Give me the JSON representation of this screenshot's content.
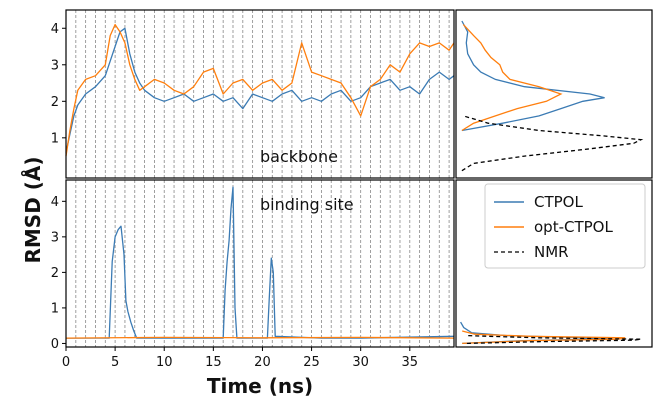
{
  "chart_data": {
    "type": "line",
    "ylabel": "RMSD (Å)",
    "xlabel": "Time (ns)",
    "xlim": [
      0,
      39.5
    ],
    "xticks": [
      0,
      5,
      10,
      15,
      20,
      25,
      30,
      35
    ],
    "colors": {
      "ctpol": "#3b7bb4",
      "opt": "#ff7f0e",
      "nmr": "#000000",
      "vline": "#888888"
    },
    "legend": [
      "CTPOL",
      "opt-CTPOL",
      "NMR"
    ],
    "panels": [
      {
        "name": "backbone",
        "label": "backbone",
        "ylim": [
          -0.1,
          4.5
        ],
        "yticks": [
          1,
          2,
          3,
          4
        ],
        "series": [
          {
            "name": "CTPOL",
            "x": [
              0,
              0.4,
              0.8,
              1.2,
              2,
              3,
              4,
              4.5,
              5,
              5.5,
              6,
              6.5,
              7,
              7.5,
              8,
              9,
              10,
              11,
              12,
              13,
              14,
              15,
              16,
              17,
              18,
              19,
              20,
              21,
              22,
              23,
              24,
              25,
              26,
              27,
              28,
              29,
              30,
              31,
              32,
              33,
              34,
              35,
              36,
              37,
              38,
              39,
              39.5
            ],
            "y": [
              0.6,
              1.1,
              1.6,
              1.9,
              2.2,
              2.4,
              2.7,
              3.1,
              3.5,
              3.9,
              4.0,
              3.3,
              2.8,
              2.5,
              2.3,
              2.1,
              2.0,
              2.1,
              2.2,
              2.0,
              2.1,
              2.2,
              2.0,
              2.1,
              1.8,
              2.2,
              2.1,
              2.0,
              2.2,
              2.3,
              2.0,
              2.1,
              2.0,
              2.2,
              2.3,
              2.0,
              2.1,
              2.4,
              2.5,
              2.6,
              2.3,
              2.4,
              2.2,
              2.6,
              2.8,
              2.6,
              2.7
            ]
          },
          {
            "name": "opt-CTPOL",
            "x": [
              0,
              0.4,
              0.8,
              1.2,
              2,
              3,
              4,
              4.5,
              5,
              5.5,
              6,
              6.5,
              7,
              7.5,
              8,
              9,
              10,
              11,
              12,
              13,
              14,
              15,
              16,
              17,
              18,
              19,
              20,
              21,
              22,
              23,
              24,
              25,
              26,
              27,
              28,
              29,
              30,
              31,
              32,
              33,
              34,
              35,
              36,
              37,
              38,
              39,
              39.5
            ],
            "y": [
              0.5,
              1.2,
              1.8,
              2.3,
              2.6,
              2.7,
              3.0,
              3.8,
              4.1,
              3.9,
              3.6,
              3.0,
              2.6,
              2.3,
              2.4,
              2.6,
              2.5,
              2.3,
              2.2,
              2.4,
              2.8,
              2.9,
              2.2,
              2.5,
              2.6,
              2.3,
              2.5,
              2.6,
              2.3,
              2.5,
              3.6,
              2.8,
              2.7,
              2.6,
              2.5,
              2.1,
              1.6,
              2.4,
              2.6,
              3.0,
              2.8,
              3.3,
              3.6,
              3.5,
              3.6,
              3.4,
              3.6
            ]
          }
        ]
      },
      {
        "name": "binding site",
        "label": "binding site",
        "ylim": [
          -0.1,
          4.6
        ],
        "yticks": [
          0,
          1,
          2,
          3,
          4
        ],
        "series": [
          {
            "name": "CTPOL",
            "x": [
              0,
              4.4,
              4.7,
              5.0,
              5.3,
              5.6,
              5.9,
              6.1,
              6.3,
              6.6,
              6.9,
              7.2,
              16,
              16.2,
              16.4,
              16.6,
              16.8,
              17.0,
              17.2,
              17.4,
              20.5,
              20.7,
              20.9,
              21.1,
              21.3,
              26,
              30,
              39.5
            ],
            "y": [
              0.15,
              0.15,
              2.3,
              3.0,
              3.2,
              3.3,
              2.5,
              1.2,
              0.9,
              0.6,
              0.35,
              0.15,
              0.15,
              1.5,
              2.3,
              2.9,
              3.8,
              4.4,
              1.0,
              0.15,
              0.15,
              1.3,
              2.4,
              2.0,
              0.2,
              0.15,
              0.15,
              0.2
            ]
          },
          {
            "name": "opt-CTPOL",
            "x": [
              0,
              10,
              20,
              30,
              39.5
            ],
            "y": [
              0.15,
              0.17,
              0.16,
              0.17,
              0.15
            ]
          }
        ]
      }
    ],
    "distributions": [
      {
        "panel": "backbone",
        "name": "CTPOL",
        "y": [
          1.2,
          1.4,
          1.6,
          1.8,
          2.0,
          2.1,
          2.2,
          2.4,
          2.6,
          2.8,
          3.0,
          3.3,
          3.6,
          3.9,
          4.2
        ],
        "density": [
          0.02,
          0.3,
          0.55,
          0.7,
          0.85,
          1.0,
          0.9,
          0.45,
          0.25,
          0.15,
          0.1,
          0.06,
          0.05,
          0.06,
          0.02
        ]
      },
      {
        "panel": "backbone",
        "name": "opt-CTPOL",
        "y": [
          1.2,
          1.4,
          1.6,
          1.8,
          2.0,
          2.2,
          2.4,
          2.6,
          2.8,
          3.0,
          3.2,
          3.4,
          3.6,
          3.8,
          4.1
        ],
        "density": [
          0.02,
          0.1,
          0.25,
          0.4,
          0.6,
          0.7,
          0.55,
          0.35,
          0.3,
          0.28,
          0.22,
          0.18,
          0.15,
          0.1,
          0.03
        ]
      },
      {
        "panel": "backbone",
        "name": "NMR",
        "y": [
          0.1,
          0.3,
          0.5,
          0.7,
          0.85,
          0.95,
          1.05,
          1.2,
          1.4,
          1.6
        ],
        "density": [
          0.02,
          0.1,
          0.45,
          0.9,
          1.2,
          1.25,
          1.0,
          0.55,
          0.2,
          0.03
        ]
      },
      {
        "panel": "binding site",
        "name": "CTPOL",
        "y": [
          0.0,
          0.08,
          0.13,
          0.17,
          0.22,
          0.3,
          0.45,
          0.6
        ],
        "density": [
          0.02,
          0.4,
          0.95,
          0.7,
          0.3,
          0.08,
          0.03,
          0.01
        ]
      },
      {
        "panel": "binding site",
        "name": "opt-CTPOL",
        "y": [
          0.0,
          0.08,
          0.12,
          0.16,
          0.2,
          0.26,
          0.35
        ],
        "density": [
          0.02,
          0.45,
          1.0,
          1.05,
          0.45,
          0.1,
          0.02
        ]
      },
      {
        "panel": "binding site",
        "name": "NMR",
        "y": [
          0.0,
          0.05,
          0.09,
          0.12,
          0.16,
          0.22
        ],
        "density": [
          0.05,
          0.5,
          1.1,
          1.15,
          0.5,
          0.05
        ]
      }
    ]
  }
}
